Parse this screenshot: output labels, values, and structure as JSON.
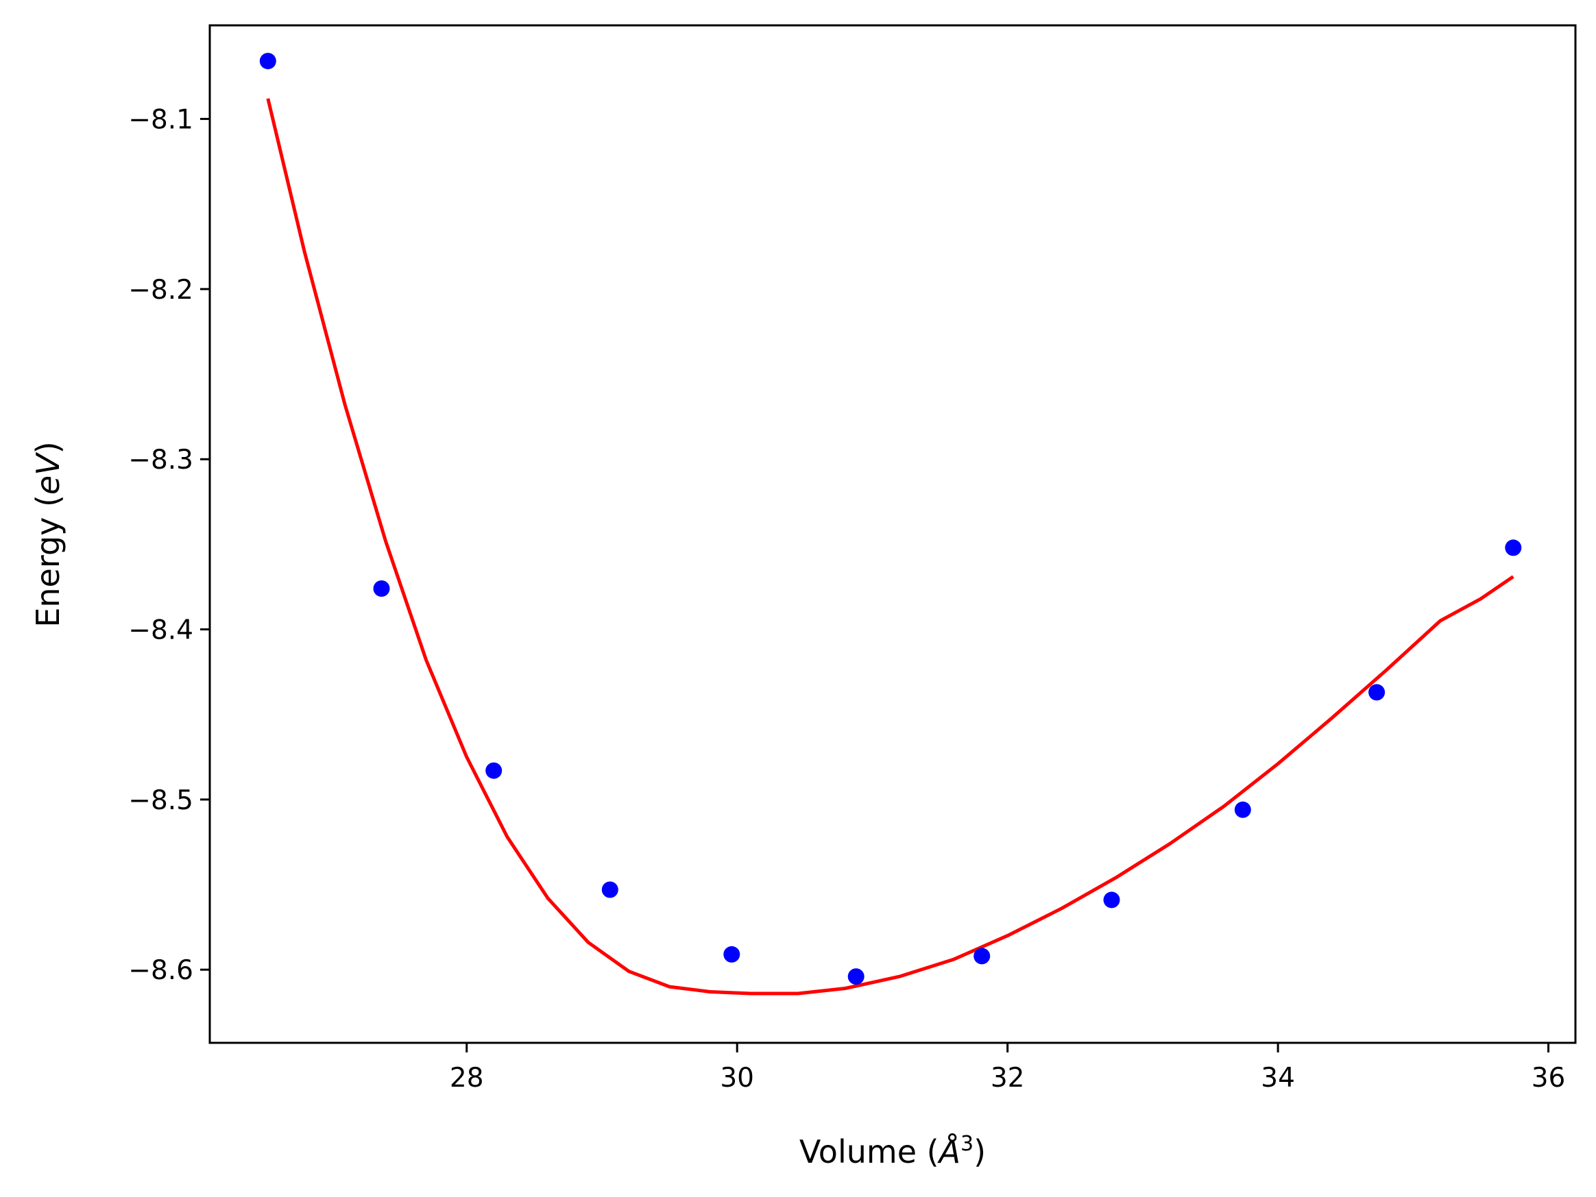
{
  "chart_data": {
    "type": "scatter",
    "xlabel": "Volume (Å³)",
    "ylabel": "Energy (eV)",
    "xlabel_parts": {
      "prefix": "Volume (",
      "symbol": "Å",
      "power": "3",
      "suffix": ")"
    },
    "ylabel_parts": {
      "prefix": "Energy (",
      "unit": "eV",
      "suffix": ")"
    },
    "xlim": [
      26.1,
      36.2
    ],
    "ylim": [
      -8.643,
      -8.045
    ],
    "xticks": [
      28,
      30,
      32,
      34,
      36
    ],
    "xtick_labels": [
      "28",
      "30",
      "32",
      "34",
      "36"
    ],
    "yticks": [
      -8.1,
      -8.2,
      -8.3,
      -8.4,
      -8.5,
      -8.6
    ],
    "ytick_labels": [
      "−8.1",
      "−8.2",
      "−8.3",
      "−8.4",
      "−8.5",
      "−8.6"
    ],
    "grid": false,
    "legend": "none",
    "series": [
      {
        "kind": "scatter",
        "color": "#0000ff",
        "x": [
          26.53,
          27.37,
          28.2,
          29.06,
          29.96,
          30.88,
          31.81,
          32.77,
          33.74,
          34.73,
          35.74
        ],
        "y": [
          -8.066,
          -8.376,
          -8.483,
          -8.553,
          -8.591,
          -8.604,
          -8.592,
          -8.559,
          -8.506,
          -8.437,
          -8.352
        ]
      },
      {
        "kind": "line",
        "color": "#ff0000",
        "x": [
          26.53,
          26.8,
          27.1,
          27.4,
          27.7,
          28.0,
          28.3,
          28.6,
          28.9,
          29.2,
          29.5,
          29.8,
          30.1,
          30.45,
          30.8,
          31.2,
          31.6,
          32.0,
          32.4,
          32.8,
          33.2,
          33.6,
          34.0,
          34.4,
          34.8,
          35.2,
          35.5,
          35.74
        ],
        "y": [
          -8.088,
          -8.178,
          -8.268,
          -8.348,
          -8.418,
          -8.475,
          -8.522,
          -8.558,
          -8.584,
          -8.601,
          -8.61,
          -8.613,
          -8.614,
          -8.614,
          -8.611,
          -8.604,
          -8.594,
          -8.58,
          -8.564,
          -8.546,
          -8.526,
          -8.504,
          -8.479,
          -8.452,
          -8.424,
          -8.395,
          -8.382,
          -8.369
        ]
      }
    ]
  }
}
